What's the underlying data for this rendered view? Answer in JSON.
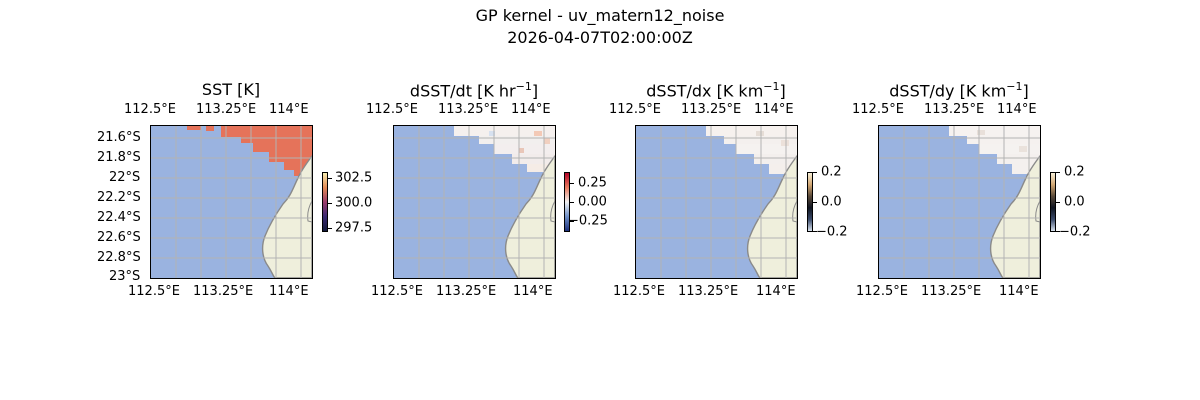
{
  "figure": {
    "title_line1": "GP kernel - uv_matern12_noise",
    "title_line2": "2026-04-07T02:00:00Z"
  },
  "colors": {
    "ocean": "#9ab3e0",
    "land": "#efefdc",
    "coast": "#8a8a8a",
    "grid": "#b3b3b3",
    "sst_warm": "#e5735a",
    "sst_hot": "#d85a48"
  },
  "panels": [
    {
      "title": "SST [K]",
      "x_ticks": [
        "112.5°E",
        "113.25°E",
        "114°E"
      ],
      "y_ticks": [
        "21.6°S",
        "21.8°S",
        "22°S",
        "22.2°S",
        "22.4°S",
        "22.6°S",
        "22.8°S",
        "23°S"
      ],
      "colorbar": {
        "colormap": "thermal",
        "ticks": [
          "302.5",
          "300.0",
          "297.5"
        ]
      }
    },
    {
      "title": "dSST/dt [K hr",
      "title_sup": "−1",
      "title_end": "]",
      "x_ticks": [
        "112.5°E",
        "113.25°E",
        "114°E"
      ],
      "colorbar": {
        "colormap": "diverging",
        "ticks": [
          "0.25",
          "0.00",
          "−0.25"
        ]
      }
    },
    {
      "title": "dSST/dx [K km",
      "title_sup": "−1",
      "title_end": "]",
      "x_ticks": [
        "112.5°E",
        "113.25°E",
        "114°E"
      ],
      "colorbar": {
        "colormap": "diverging-dark",
        "ticks": [
          "0.2",
          "0.0",
          "−0.2"
        ]
      }
    },
    {
      "title": "dSST/dy [K km",
      "title_sup": "−1",
      "title_end": "]",
      "x_ticks": [
        "112.5°E",
        "113.25°E",
        "114°E"
      ],
      "colorbar": {
        "colormap": "diverging-dark",
        "ticks": [
          "0.2",
          "0.0",
          "−0.2"
        ]
      }
    }
  ]
}
